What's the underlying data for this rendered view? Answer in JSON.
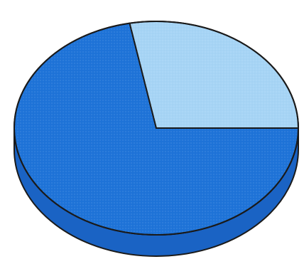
{
  "chart_data": {
    "type": "pie",
    "style": "3d",
    "title": "",
    "slices": [
      {
        "value": 72,
        "color": "#1e73d8"
      },
      {
        "value": 28,
        "color": "#a6d4f5"
      }
    ],
    "legend": "none",
    "labels": "none"
  },
  "colors": {
    "background": "#ffffff",
    "outline": "#1a1a1a",
    "dark_blue": "#1e73d8",
    "dark_blue_side": "#1a63c4",
    "light_blue": "#a6d4f5"
  }
}
